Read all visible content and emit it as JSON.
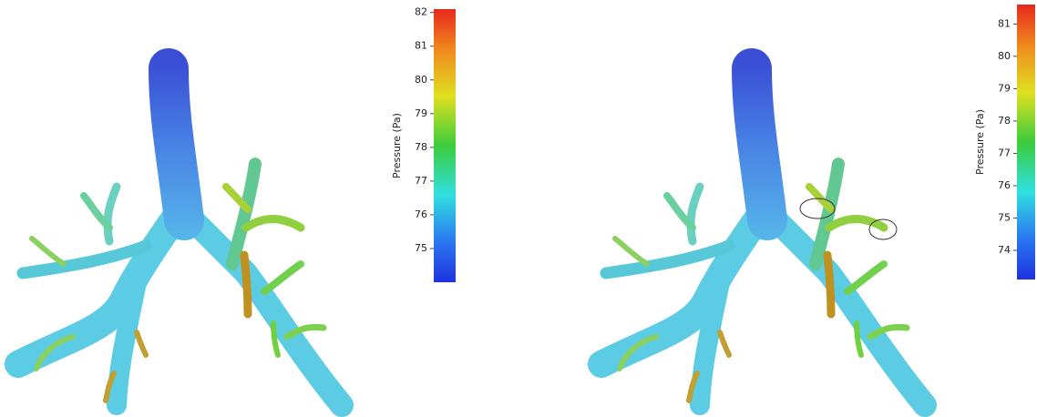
{
  "panels": [
    {
      "colorbar": {
        "label": "Pressure (Pa)",
        "lim": [
          74.0,
          82.1
        ],
        "ticks": [
          75,
          76,
          77,
          78,
          79,
          80,
          81,
          82
        ]
      }
    },
    {
      "colorbar": {
        "label": "Pressure (Pa)",
        "lim": [
          73.1,
          81.6
        ],
        "ticks": [
          74,
          75,
          76,
          77,
          78,
          79,
          80,
          81
        ]
      }
    }
  ]
}
